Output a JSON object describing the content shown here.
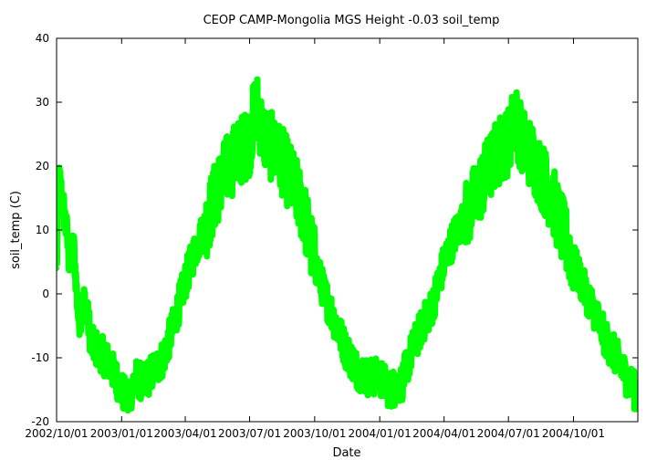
{
  "chart_data": {
    "type": "line",
    "title": "CEOP  CAMP-Mongolia MGS Height -0.03 soil_temp",
    "xlabel": "Date",
    "ylabel": "soil_temp (C)",
    "ylim": [
      -20,
      40
    ],
    "yticks": [
      -20,
      -10,
      0,
      10,
      20,
      30,
      40
    ],
    "xlim": [
      "2002-10-01",
      "2004-12-31"
    ],
    "xtick_labels": [
      "2002/10/01",
      "2003/01/01",
      "2003/04/01",
      "2003/07/01",
      "2003/10/01",
      "2004/01/01",
      "2004/04/01",
      "2004/07/01",
      "2004/10/01"
    ],
    "xtick_dates": [
      "2002-10-01",
      "2003-01-01",
      "2003-04-01",
      "2003-07-01",
      "2003-10-01",
      "2004-01-01",
      "2004-04-01",
      "2004-07-01",
      "2004-10-01"
    ],
    "grid": false,
    "series": [
      {
        "name": "soil_temp",
        "color": "#00ff00",
        "points": [
          [
            "2002-10-01",
            4
          ],
          [
            "2002-10-05",
            18
          ],
          [
            "2002-10-10",
            14
          ],
          [
            "2002-10-15",
            10
          ],
          [
            "2002-10-20",
            4
          ],
          [
            "2002-10-25",
            8
          ],
          [
            "2002-11-01",
            -4
          ],
          [
            "2002-11-10",
            -1
          ],
          [
            "2002-11-20",
            -8
          ],
          [
            "2002-12-01",
            -9
          ],
          [
            "2002-12-15",
            -11
          ],
          [
            "2003-01-01",
            -15
          ],
          [
            "2003-01-10",
            -17
          ],
          [
            "2003-01-20",
            -13
          ],
          [
            "2003-02-01",
            -14
          ],
          [
            "2003-02-15",
            -12
          ],
          [
            "2003-03-01",
            -10
          ],
          [
            "2003-03-15",
            -5
          ],
          [
            "2003-04-01",
            2
          ],
          [
            "2003-04-15",
            7
          ],
          [
            "2003-05-01",
            11
          ],
          [
            "2003-05-15",
            16
          ],
          [
            "2003-06-01",
            20
          ],
          [
            "2003-06-15",
            22
          ],
          [
            "2003-07-01",
            24
          ],
          [
            "2003-07-10",
            30
          ],
          [
            "2003-07-20",
            25
          ],
          [
            "2003-08-01",
            23
          ],
          [
            "2003-08-15",
            21
          ],
          [
            "2003-09-01",
            17
          ],
          [
            "2003-09-15",
            13
          ],
          [
            "2003-10-01",
            5
          ],
          [
            "2003-10-15",
            0
          ],
          [
            "2003-11-01",
            -5
          ],
          [
            "2003-11-15",
            -9
          ],
          [
            "2003-12-01",
            -12
          ],
          [
            "2003-12-15",
            -13
          ],
          [
            "2004-01-01",
            -13
          ],
          [
            "2004-01-15",
            -15
          ],
          [
            "2004-02-01",
            -14
          ],
          [
            "2004-02-15",
            -9
          ],
          [
            "2004-03-01",
            -5
          ],
          [
            "2004-03-15",
            -2
          ],
          [
            "2004-04-01",
            5
          ],
          [
            "2004-04-15",
            9
          ],
          [
            "2004-05-01",
            12
          ],
          [
            "2004-05-15",
            15
          ],
          [
            "2004-06-01",
            19
          ],
          [
            "2004-06-15",
            22
          ],
          [
            "2004-07-01",
            24
          ],
          [
            "2004-07-10",
            28
          ],
          [
            "2004-07-20",
            24
          ],
          [
            "2004-08-01",
            22
          ],
          [
            "2004-08-15",
            19
          ],
          [
            "2004-09-01",
            15
          ],
          [
            "2004-09-15",
            10
          ],
          [
            "2004-10-01",
            5
          ],
          [
            "2004-10-15",
            1
          ],
          [
            "2004-11-01",
            -3
          ],
          [
            "2004-11-15",
            -7
          ],
          [
            "2004-12-01",
            -10
          ],
          [
            "2004-12-15",
            -13
          ],
          [
            "2004-12-31",
            -16
          ]
        ]
      }
    ]
  }
}
